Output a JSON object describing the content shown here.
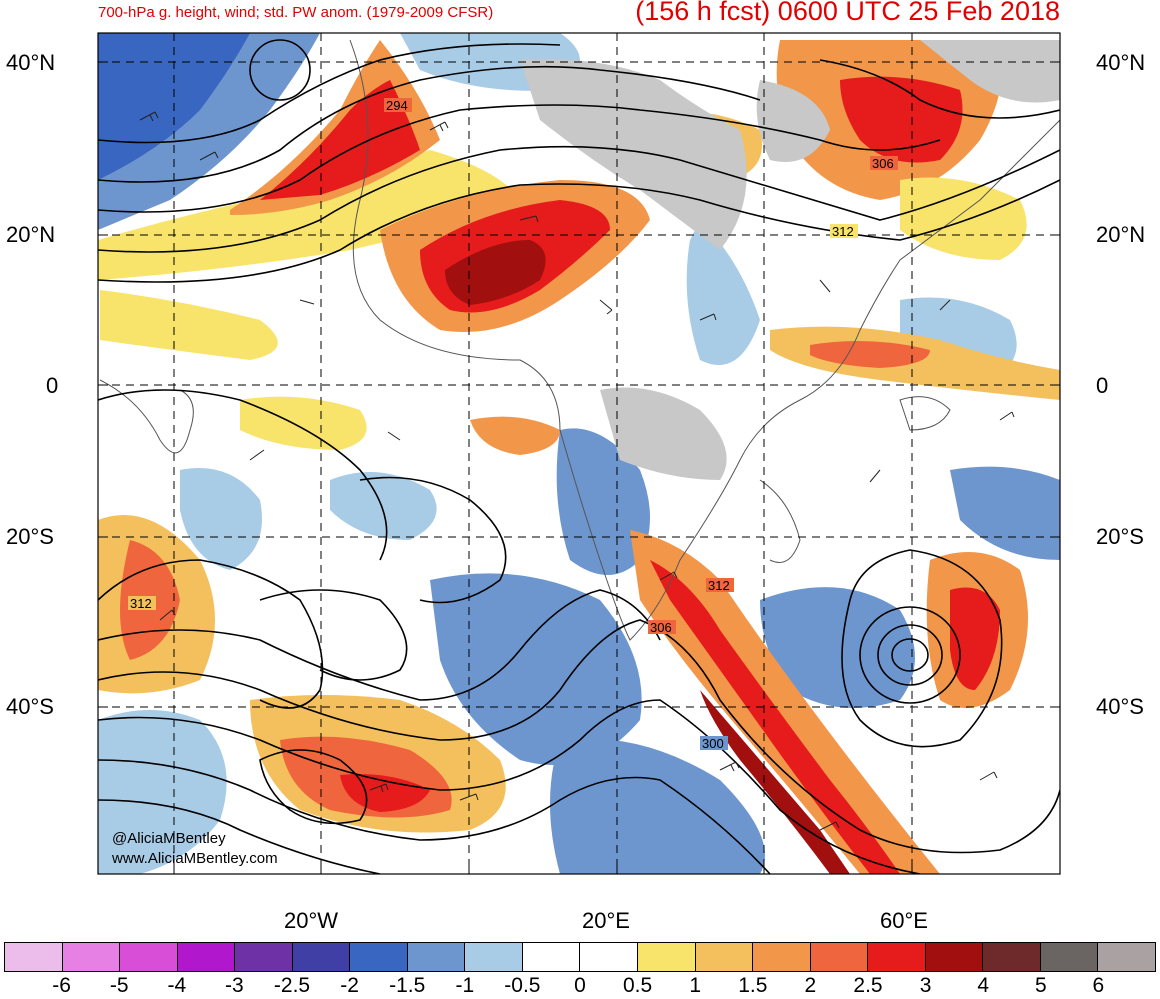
{
  "header": {
    "title_left": "700-hPa g. height, wind; std. PW anom. (1979-2009 CFSR)",
    "title_right": "(156 h fcst) 0600 UTC 25 Feb 2018"
  },
  "map": {
    "lat_labels_left": [
      "40°N",
      "20°N",
      "0",
      "20°S",
      "40°S"
    ],
    "lat_labels_right": [
      "40°N",
      "20°N",
      "0",
      "20°S",
      "40°S"
    ],
    "lon_labels": [
      "20°W",
      "20°E",
      "60°E"
    ],
    "contour_labels": [
      "294",
      "306",
      "312",
      "312",
      "312",
      "306",
      "300"
    ],
    "credits": [
      "@AliciaMBentley",
      "www.AliciaMBentley.com"
    ]
  },
  "colorbar": {
    "ticks": [
      "-6",
      "-5",
      "-4",
      "-3",
      "-2.5",
      "-2",
      "-1.5",
      "-1",
      "-0.5",
      "0",
      "0.5",
      "1",
      "1.5",
      "2",
      "2.5",
      "3",
      "4",
      "5",
      "6"
    ],
    "colors": [
      "#ecbdea",
      "#e680e4",
      "#d84ed6",
      "#b117cc",
      "#6f31a6",
      "#3f3fa5",
      "#3966c0",
      "#6d96cf",
      "#a8cbe6",
      "#ffffff",
      "#ffffff",
      "#f8e36b",
      "#f4c05d",
      "#f2964a",
      "#ef653d",
      "#e61b1b",
      "#a10f0f",
      "#6e2a2a",
      "#6a6463",
      "#aaa2a2"
    ]
  }
}
